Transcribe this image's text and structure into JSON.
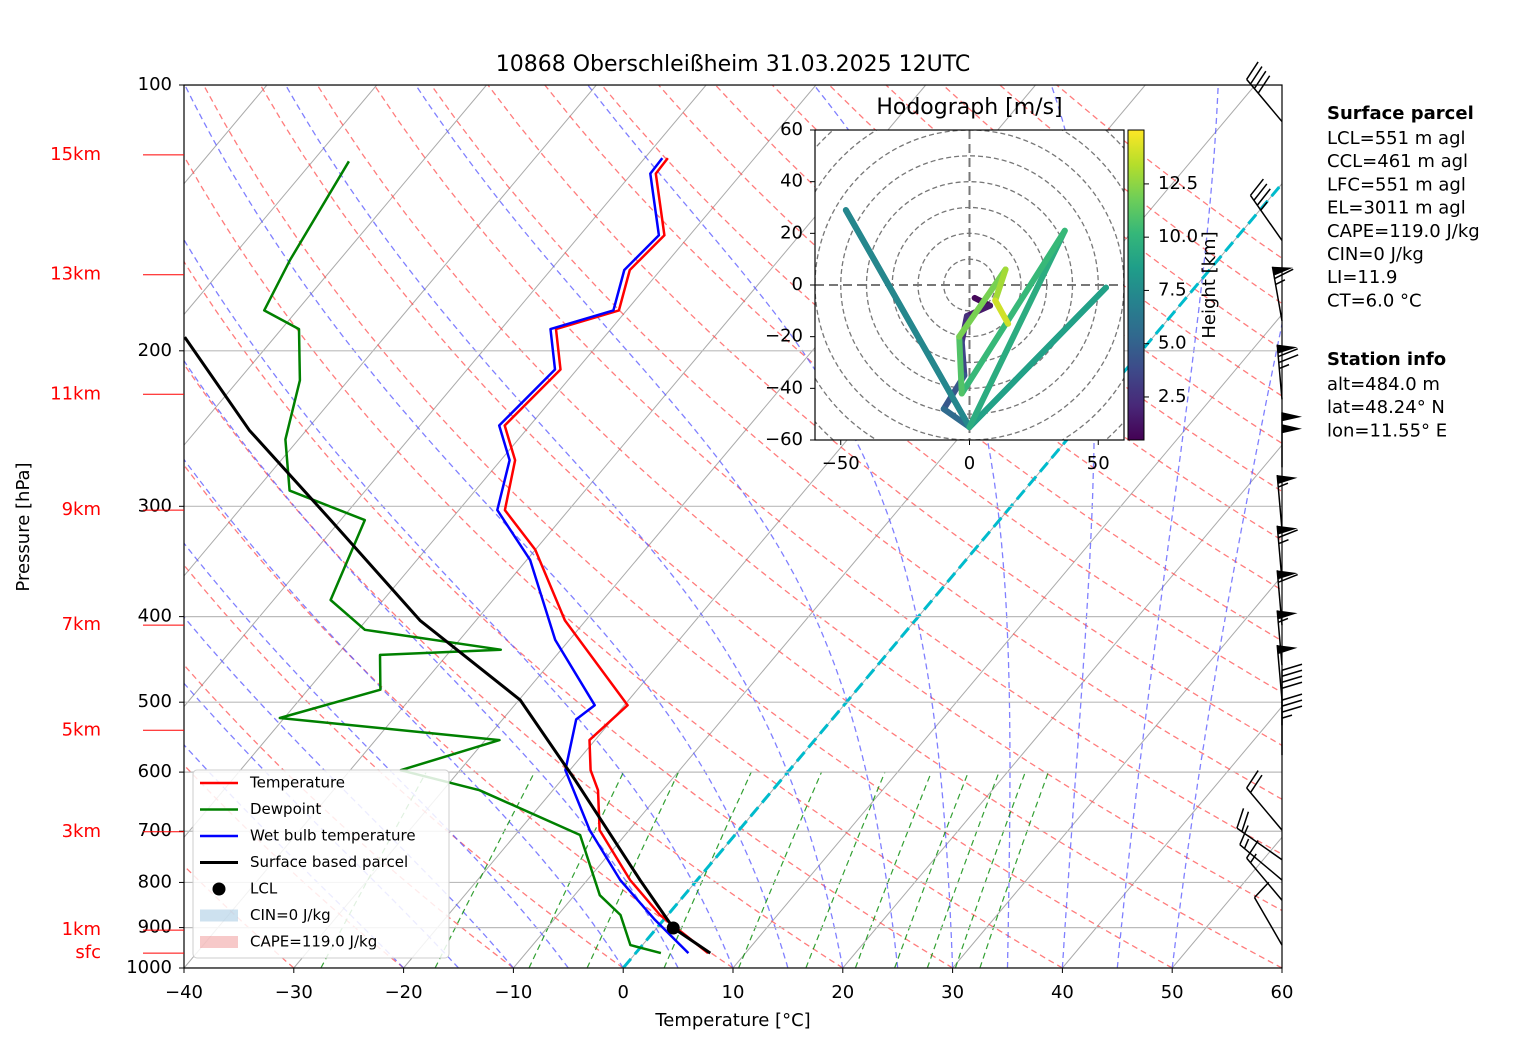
{
  "chart_data": [
    {
      "type": "skewt",
      "title": "10868 Oberschleißheim 31.03.2025 12UTC",
      "x_label": "Temperature [°C]",
      "y_label": "Pressure [hPa]",
      "xlim": [
        -40,
        60
      ],
      "xticks": [
        {
          "value": -40,
          "label": "−40"
        },
        {
          "value": -30,
          "label": "−30"
        },
        {
          "value": -20,
          "label": "−20"
        },
        {
          "value": -10,
          "label": "−10"
        },
        0,
        10,
        20,
        30,
        40,
        50,
        60
      ],
      "ylim": [
        1000,
        100
      ],
      "yticks": [
        100,
        200,
        300,
        400,
        500,
        600,
        700,
        800,
        900,
        1000
      ],
      "log_y": true,
      "grid": true,
      "legend": "lower left",
      "series": [
        {
          "name": "Temperature",
          "color": "#ff0000",
          "pressure": [
            962,
            871,
            795,
            698,
            629,
            597,
            552,
            504,
            404,
            336,
            303,
            266,
            243,
            210,
            189,
            180,
            162,
            148,
            126,
            121
          ],
          "values": [
            6.6,
            -0.7,
            -6.1,
            -12.7,
            -15.9,
            -18.1,
            -20.5,
            -19.7,
            -31.9,
            -40,
            -45.8,
            -48.7,
            -52.3,
            -51.5,
            -55,
            -50.7,
            -52.8,
            -52.3,
            -57.8,
            -57.9
          ]
        },
        {
          "name": "Dewpoint",
          "color": "#008000",
          "pressure": [
            962,
            942,
            871,
            827,
            707,
            629,
            597,
            552,
            521,
            484,
            442,
            436,
            414,
            383,
            311,
            288,
            252,
            216,
            189,
            180,
            158,
            122
          ],
          "values": [
            2.3,
            -1.1,
            -4.3,
            -7.7,
            -14.1,
            -26.7,
            -35.4,
            -28.7,
            -50.4,
            -43.4,
            -46.1,
            -35.5,
            -49.4,
            -54.8,
            -57.8,
            -66.9,
            -71.2,
            -74.4,
            -78.4,
            -83,
            -84.5,
            -86.7
          ]
        },
        {
          "name": "Wet bulb temperature",
          "color": "#0000ff",
          "pressure": [
            962,
            882,
            795,
            698,
            597,
            523,
            504,
            425,
            345,
            303,
            266,
            243,
            210,
            189,
            180,
            162,
            148,
            126,
            121
          ],
          "values": [
            4.8,
            -0.8,
            -7,
            -13.6,
            -20.4,
            -23.3,
            -22.7,
            -31.3,
            -39.7,
            -46.5,
            -49.2,
            -52.8,
            -52,
            -55.5,
            -51.2,
            -53.3,
            -52.8,
            -58.3,
            -58.4
          ]
        },
        {
          "name": "Surface based parcel",
          "color": "#000000",
          "pressure": [
            962,
            901,
            795,
            612,
            497,
            404,
            311,
            246,
            193
          ],
          "values": [
            6.8,
            1.5,
            -5.2,
            -18.8,
            -29.9,
            -45.1,
            -60.9,
            -75.2,
            -88.2
          ]
        }
      ],
      "lcl": {
        "name": "LCL",
        "pressure": 901,
        "value": 1.5,
        "color": "#000000"
      },
      "cin_label": "CIN=0 J/kg",
      "cape_label": "CAPE=119.0 J/kg",
      "highlight_isotherm": 0,
      "height_labels": [
        {
          "label": "15km",
          "pressure": 120
        },
        {
          "label": "13km",
          "pressure": 164
        },
        {
          "label": "11km",
          "pressure": 224
        },
        {
          "label": "9km",
          "pressure": 303
        },
        {
          "label": "7km",
          "pressure": 409
        },
        {
          "label": "5km",
          "pressure": 538
        },
        {
          "label": "3km",
          "pressure": 701
        },
        {
          "label": "1km",
          "pressure": 906
        },
        {
          "label": "sfc",
          "pressure": 962
        }
      ],
      "wind_barbs": {
        "pressure": [
          110,
          150,
          185,
          227,
          271,
          319,
          364,
          409,
          454,
          497,
          531,
          574,
          698,
          754,
          795,
          838,
          942
        ],
        "direction": [
          320,
          325,
          350,
          355,
          0,
          355,
          355,
          355,
          355,
          355,
          0,
          0,
          320,
          305,
          310,
          320,
          330
        ],
        "speed": [
          40,
          35,
          65,
          75,
          100,
          55,
          65,
          60,
          55,
          50,
          40,
          35,
          20,
          20,
          15,
          15,
          10
        ]
      }
    },
    {
      "type": "hodograph",
      "title": "Hodograph [m/s]",
      "xlim": [
        -60,
        60
      ],
      "ylim": [
        -60,
        60
      ],
      "xticks": [
        {
          "value": -50,
          "label": "−50"
        },
        0,
        50
      ],
      "yticks": [
        {
          "value": -60,
          "label": "−60"
        },
        {
          "value": -40,
          "label": "−40"
        },
        {
          "value": -20,
          "label": "−20"
        },
        0,
        20,
        40,
        60
      ],
      "u": [
        2,
        8,
        -1,
        -3,
        -2,
        -10,
        0,
        -48,
        0,
        53,
        0,
        37,
        -3,
        -4,
        14,
        10,
        15
      ],
      "v": [
        -5,
        -8,
        -12,
        -22,
        -35,
        -48,
        -55,
        29,
        -55,
        -1,
        -55,
        21,
        -42,
        -20,
        6,
        -6,
        -15
      ],
      "height": [
        0.5,
        1,
        2,
        3,
        4,
        5,
        6,
        7,
        7.5,
        8.5,
        9,
        10,
        10.5,
        11.5,
        12.5,
        13.5,
        14.5
      ],
      "colormap": "viridis",
      "colorbar": {
        "label": "Height [km]",
        "clim": [
          0.48,
          15.03
        ],
        "ticks": [
          2.5,
          {
            "value": 5,
            "label": "5.0"
          },
          7.5,
          {
            "value": 10,
            "label": "10.0"
          },
          12.5
        ]
      }
    }
  ],
  "info": {
    "surface_parcel": {
      "title": "Surface parcel",
      "lines": [
        "LCL=551 m agl",
        "CCL=461 m agl",
        "LFC=551 m agl",
        "EL=3011 m agl",
        "CAPE=119.0 J/kg",
        "CIN=0 J/kg",
        "LI=11.9",
        "CT=6.0 °C"
      ]
    },
    "station": {
      "title": "Station info",
      "lines": [
        "alt=484.0 m",
        "lat=48.24° N",
        "lon=11.55° E"
      ]
    }
  }
}
